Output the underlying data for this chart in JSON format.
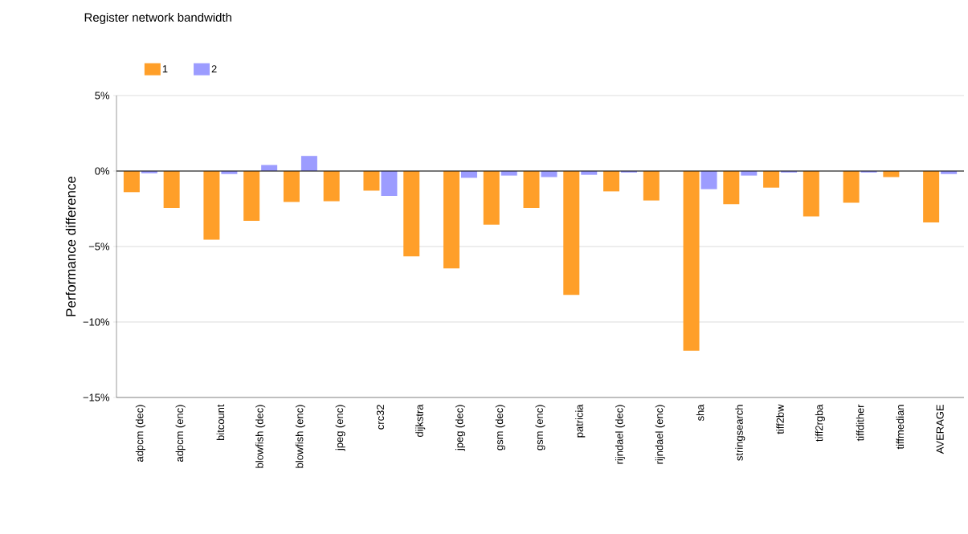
{
  "chart_data": {
    "type": "bar",
    "title": "Register network bandwidth",
    "ylabel": "Performance difference",
    "categories": [
      "adpcm (dec)",
      "adpcm (enc)",
      "bitcount",
      "blowfish (dec)",
      "blowfish (enc)",
      "jpeg (enc)",
      "crc32",
      "dijkstra",
      "jpeg (dec)",
      "gsm (dec)",
      "gsm (enc)",
      "patricia",
      "rijndael (dec)",
      "rijndael (enc)",
      "sha",
      "stringsearch",
      "tiff2bw",
      "tiff2rgba",
      "tiffdither",
      "tiffmedian",
      "AVERAGE"
    ],
    "series": [
      {
        "name": "1",
        "color": "#ff9f29",
        "values": [
          -1.4,
          -2.45,
          -4.55,
          -3.3,
          -2.05,
          -2.0,
          -1.3,
          -5.65,
          -6.45,
          -3.55,
          -2.45,
          -8.2,
          -1.35,
          -1.95,
          -11.9,
          -2.2,
          -1.1,
          -3.0,
          -2.1,
          -0.4,
          -3.4
        ]
      },
      {
        "name": "2",
        "color": "#9c9cff",
        "values": [
          -0.15,
          null,
          -0.2,
          0.4,
          1.0,
          0.0,
          -1.65,
          0.0,
          -0.45,
          -0.3,
          -0.4,
          -0.25,
          -0.1,
          0.0,
          -1.2,
          -0.3,
          -0.1,
          0.0,
          -0.1,
          0.0,
          -0.2
        ]
      }
    ],
    "ylim": [
      -15,
      5
    ],
    "yticks": [
      {
        "value": -15,
        "label": "−15%"
      },
      {
        "value": -10,
        "label": "−10%"
      },
      {
        "value": -5,
        "label": "−5%"
      },
      {
        "value": 0,
        "label": "0%"
      },
      {
        "value": 5,
        "label": "5%"
      }
    ],
    "grid": "y",
    "legend": "top left"
  }
}
